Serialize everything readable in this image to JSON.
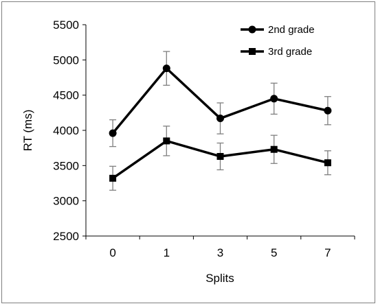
{
  "chart_data": {
    "type": "line",
    "title": "",
    "xlabel": "Splits",
    "ylabel": "RT (ms)",
    "categories": [
      "0",
      "1",
      "3",
      "5",
      "7"
    ],
    "ylim": [
      2500,
      5500
    ],
    "yticks": [
      2500,
      3000,
      3500,
      4000,
      4500,
      5000,
      5500
    ],
    "grid": false,
    "legend_position": "top-right",
    "series": [
      {
        "name": "2nd grade",
        "marker": "circle",
        "color": "#000000",
        "values": [
          3960,
          4880,
          4170,
          4450,
          4280
        ],
        "error": [
          190,
          240,
          220,
          220,
          200
        ]
      },
      {
        "name": "3rd grade",
        "marker": "square",
        "color": "#000000",
        "values": [
          3320,
          3850,
          3630,
          3730,
          3540
        ],
        "error": [
          170,
          210,
          190,
          200,
          170
        ]
      }
    ]
  }
}
